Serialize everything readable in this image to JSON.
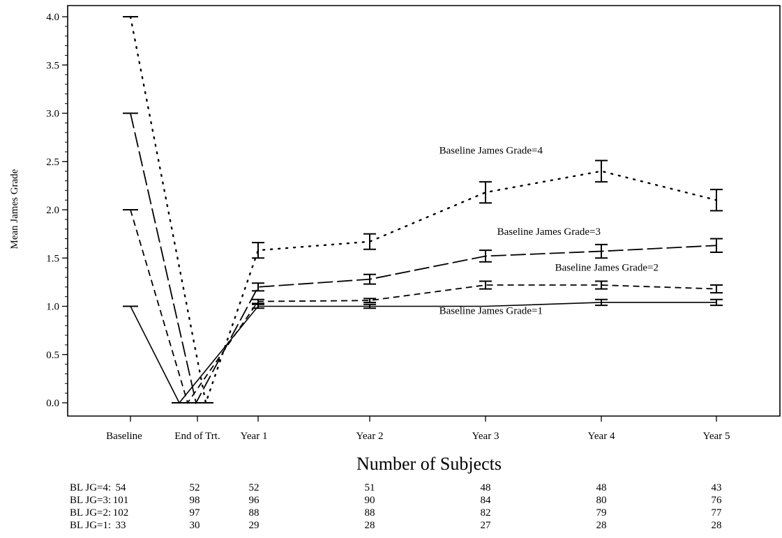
{
  "chart_data": {
    "type": "line",
    "title": "",
    "xlabel": "",
    "ylabel": "Mean James Grade",
    "ylim": [
      0.0,
      4.0
    ],
    "yticks": [
      "0.0",
      "0.5",
      "1.0",
      "1.5",
      "2.0",
      "2.5",
      "3.0",
      "3.5",
      "4.0"
    ],
    "categories": [
      "Baseline",
      "End of Trt.",
      "Year 1",
      "Year 2",
      "Year 3",
      "Year 4",
      "Year 5"
    ],
    "grid": false,
    "series": [
      {
        "name": "Baseline James Grade=4",
        "style": "dotted",
        "values": [
          4.0,
          0.0,
          1.58,
          1.67,
          2.18,
          2.4,
          2.1
        ],
        "errors": [
          0,
          0,
          0.08,
          0.08,
          0.11,
          0.11,
          0.11
        ],
        "label_at": [
          3.6,
          2.58
        ]
      },
      {
        "name": "Baseline James Grade=3",
        "style": "long-dash",
        "values": [
          3.0,
          0.0,
          1.2,
          1.28,
          1.52,
          1.57,
          1.63
        ],
        "errors": [
          0,
          0,
          0.04,
          0.05,
          0.06,
          0.07,
          0.07
        ],
        "label_at": [
          4.1,
          1.74
        ]
      },
      {
        "name": "Baseline James Grade=2",
        "style": "short-dash",
        "values": [
          2.0,
          0.0,
          1.05,
          1.06,
          1.22,
          1.22,
          1.18
        ],
        "errors": [
          0,
          0,
          0.02,
          0.02,
          0.04,
          0.04,
          0.04
        ],
        "label_at": [
          4.6,
          1.37
        ]
      },
      {
        "name": "Baseline James Grade=1",
        "style": "solid",
        "values": [
          1.0,
          0.0,
          1.0,
          1.0,
          1.0,
          1.04,
          1.04
        ],
        "errors": [
          0,
          0,
          0.02,
          0.02,
          0,
          0.03,
          0.03
        ],
        "label_at": [
          3.6,
          0.92
        ]
      }
    ]
  },
  "subjects_table": {
    "title": "Number of Subjects",
    "rows": [
      {
        "label": "BL JG=4:",
        "counts": [
          "54",
          "52",
          "52",
          "51",
          "48",
          "48",
          "43"
        ]
      },
      {
        "label": "BL JG=3:",
        "counts": [
          "101",
          "98",
          "96",
          "90",
          "84",
          "80",
          "76"
        ]
      },
      {
        "label": "BL JG=2:",
        "counts": [
          "102",
          "97",
          "88",
          "88",
          "82",
          "79",
          "77"
        ]
      },
      {
        "label": "BL JG=1:",
        "counts": [
          "33",
          "30",
          "29",
          "28",
          "27",
          "28",
          "28"
        ]
      }
    ]
  }
}
